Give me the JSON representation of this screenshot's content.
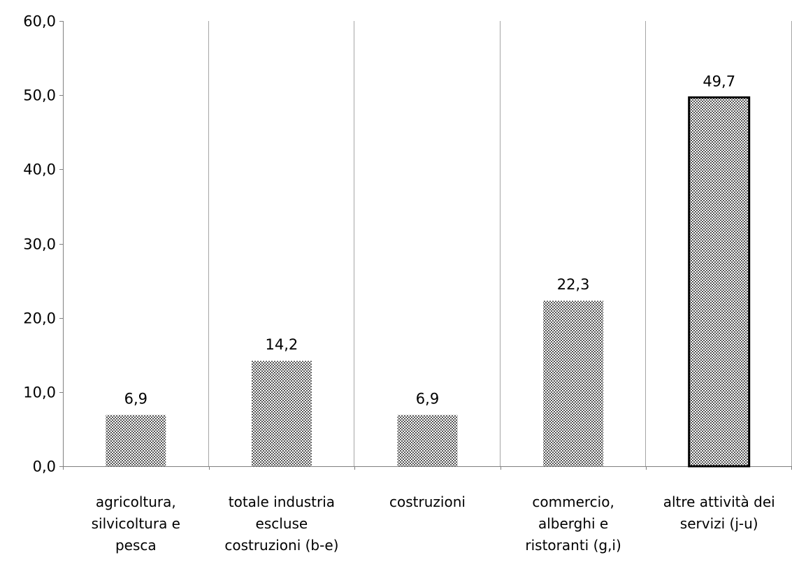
{
  "chart_data": {
    "type": "bar",
    "title": "",
    "xlabel": "",
    "ylabel": "",
    "categories": [
      [
        "agricoltura,",
        "silvicoltura e",
        "pesca"
      ],
      [
        "totale industria",
        "escluse",
        "costruzioni (b-e)"
      ],
      [
        "costruzioni"
      ],
      [
        "commercio,",
        "alberghi e",
        "ristoranti (g,i)"
      ],
      [
        "altre attività dei",
        "servizi (j-u)"
      ]
    ],
    "values": [
      6.9,
      14.2,
      6.9,
      22.3,
      49.7
    ],
    "value_labels": [
      "6,9",
      "14,2",
      "6,9",
      "22,3",
      "49,7"
    ],
    "highlighted_index": 4,
    "ylim": [
      0,
      60
    ],
    "y_ticks": [
      0,
      10,
      20,
      30,
      40,
      50,
      60
    ],
    "y_tick_labels": [
      "0,0",
      "10,0",
      "20,0",
      "30,0",
      "40,0",
      "50,0",
      "60,0"
    ],
    "grid": true,
    "legend": "none",
    "colors": {
      "bar_pattern_fg": "#555555",
      "bar_pattern_bg": "#ffffff",
      "highlight_border": "#000000",
      "grid": "#a6a6a6",
      "axis": "#808080"
    }
  }
}
